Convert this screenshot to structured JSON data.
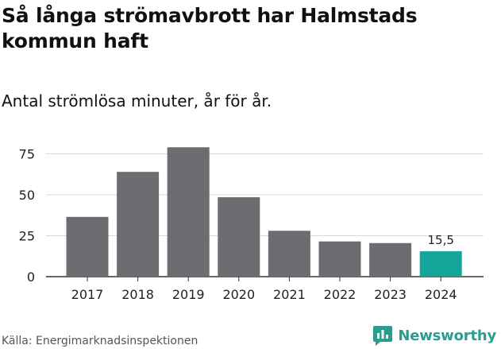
{
  "title": "Så långa strömavbrott har Halmstads kommun haft",
  "subtitle": "Antal strömlösa minuter, år för år.",
  "source": "Källa: Energimarknadsinspektionen",
  "brand": {
    "name": "Newsworthy",
    "icon": "newsworthy-logo-icon",
    "color": "#2a9d8f"
  },
  "colors": {
    "bar": "#6d6c70",
    "highlight": "#14a59a",
    "grid": "#d9d9d9",
    "axis": "#333333"
  },
  "chart_data": {
    "type": "bar",
    "categories": [
      "2017",
      "2018",
      "2019",
      "2020",
      "2021",
      "2022",
      "2023",
      "2024"
    ],
    "values": [
      36.5,
      64,
      79,
      48.5,
      28,
      21.5,
      20.5,
      15.5
    ],
    "highlight_index": 7,
    "data_labels": [
      "",
      "",
      "",
      "",
      "",
      "",
      "",
      "15,5"
    ],
    "yticks": [
      0,
      25,
      50,
      75
    ],
    "ylim": [
      0,
      80
    ],
    "grid": true,
    "title": "Så långa strömavbrott har Halmstads kommun haft",
    "subtitle": "Antal strömlösa minuter, år för år.",
    "xlabel": "",
    "ylabel": ""
  }
}
